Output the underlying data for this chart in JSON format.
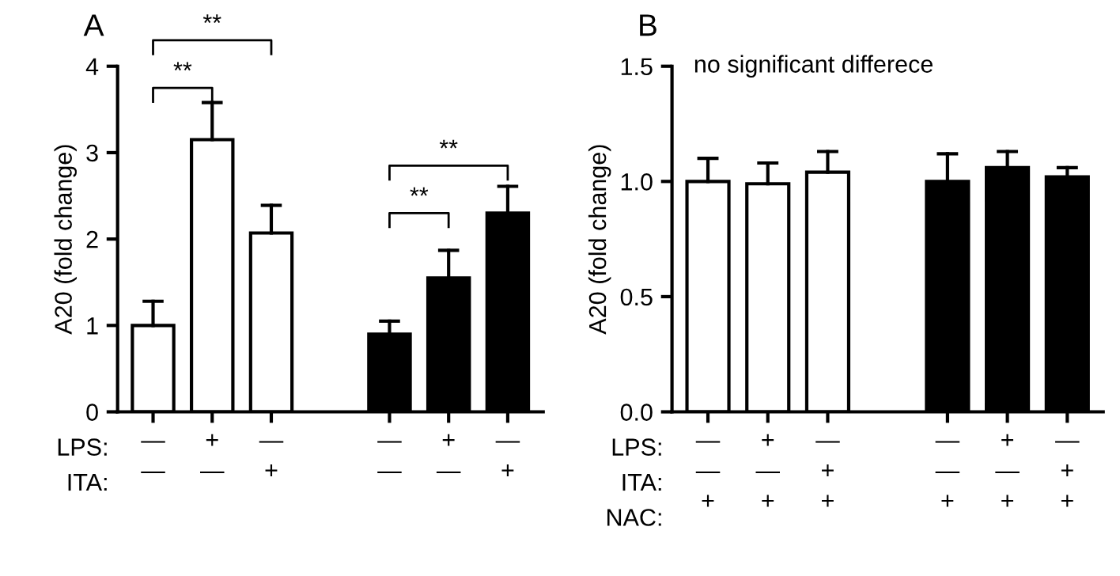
{
  "chart_data": [
    {
      "type": "bar",
      "title": "A",
      "ylabel": "A20 (fold change)",
      "categories": [
        "—\n—",
        "+\n—",
        "—\n+",
        null,
        "—\n—",
        "+\n—",
        "—\n+"
      ],
      "values": [
        1.0,
        3.15,
        2.07,
        null,
        0.9,
        1.55,
        2.3
      ],
      "colors": [
        "#ffffff",
        "#ffffff",
        "#ffffff",
        null,
        "#000000",
        "#000000",
        "#000000"
      ],
      "errors": [
        [
          1.0,
          1.28
        ],
        [
          3.15,
          3.58
        ],
        [
          2.07,
          2.39
        ],
        null,
        [
          0.9,
          1.05
        ],
        [
          1.55,
          1.87
        ],
        [
          2.3,
          2.61
        ]
      ],
      "ylim": [
        0,
        4
      ],
      "yticks": [
        0,
        1,
        2,
        3,
        4
      ],
      "annotations": [
        "LPS:",
        "ITA:",
        "**",
        "**",
        "**",
        "**"
      ]
    },
    {
      "type": "bar",
      "title": "B",
      "ylabel": "A20 (fold change)",
      "categories": [
        "—\n—\n+",
        "+\n—\n+",
        "—\n+\n+",
        null,
        "—\n—\n+",
        "+\n—\n+",
        "—\n+\n+"
      ],
      "values": [
        1.0,
        0.99,
        1.04,
        null,
        1.0,
        1.06,
        1.02
      ],
      "colors": [
        "#ffffff",
        "#ffffff",
        "#ffffff",
        null,
        "#000000",
        "#000000",
        "#000000"
      ],
      "errors": [
        [
          1.0,
          1.1
        ],
        [
          0.99,
          1.08
        ],
        [
          1.04,
          1.13
        ],
        null,
        [
          1.0,
          1.12
        ],
        [
          1.06,
          1.13
        ],
        [
          1.02,
          1.06
        ]
      ],
      "ylim": [
        0,
        1.5
      ],
      "yticks": [
        {
          "value": 0,
          "label": "0.0"
        },
        {
          "value": 0.5,
          "label": "0.5"
        },
        {
          "value": 1,
          "label": "1.0"
        },
        {
          "value": 1.5,
          "label": "1.5"
        }
      ],
      "annotations": [
        "LPS:",
        "ITA:",
        "NAC:",
        "no significant differece"
      ]
    }
  ]
}
